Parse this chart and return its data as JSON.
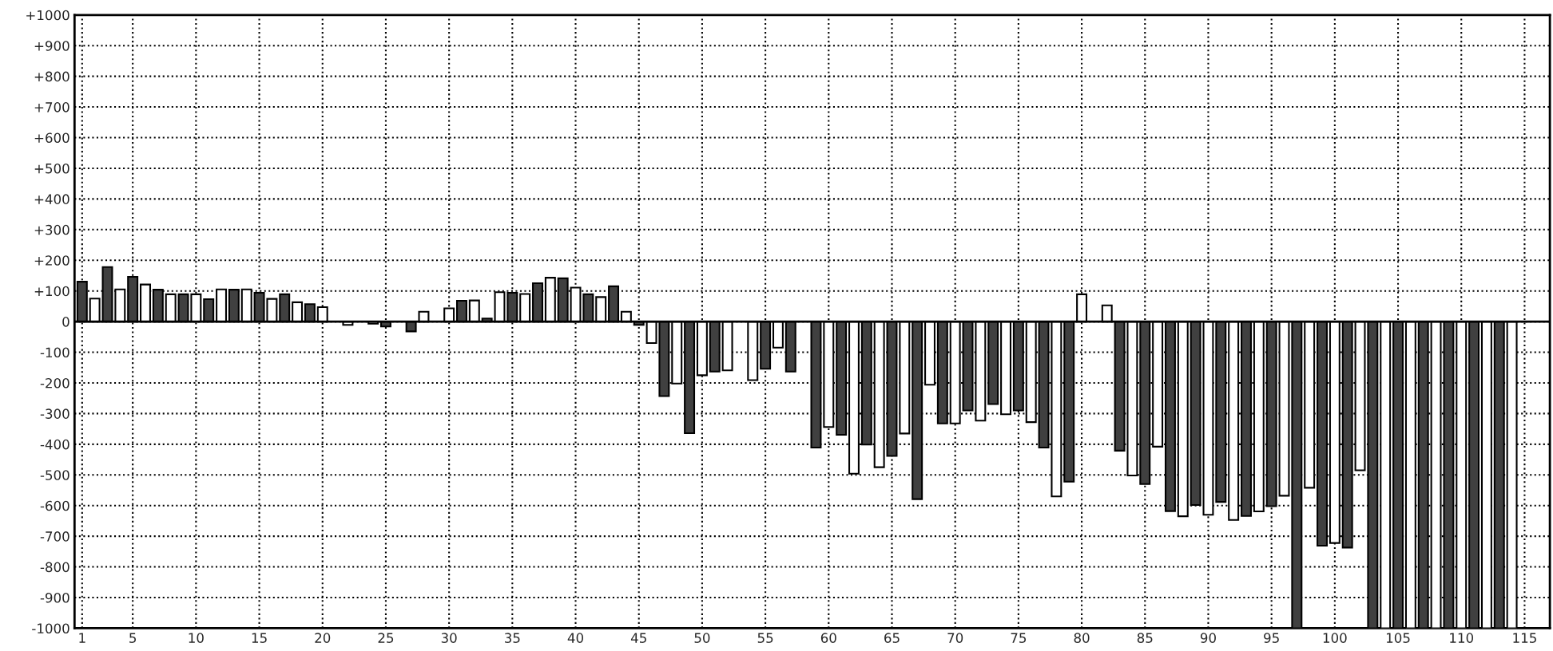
{
  "chart_data": {
    "type": "bar",
    "x": [
      1,
      2,
      3,
      4,
      5,
      6,
      7,
      8,
      9,
      10,
      11,
      12,
      13,
      14,
      15,
      16,
      17,
      18,
      19,
      20,
      21,
      22,
      23,
      24,
      25,
      26,
      27,
      28,
      29,
      30,
      31,
      32,
      33,
      34,
      35,
      36,
      37,
      38,
      39,
      40,
      41,
      42,
      43,
      44,
      45,
      46,
      47,
      48,
      49,
      50,
      51,
      52,
      53,
      54,
      55,
      56,
      57,
      58,
      59,
      60,
      61,
      62,
      63,
      64,
      65,
      66,
      67,
      68,
      69,
      70,
      71,
      72,
      73,
      74,
      75,
      76,
      77,
      78,
      79,
      80,
      81,
      82,
      83,
      84,
      85,
      86,
      87,
      88,
      89,
      90,
      91,
      92,
      93,
      94,
      95,
      96,
      97,
      98,
      99,
      100,
      101,
      102,
      103,
      104,
      105,
      106,
      107,
      108,
      109,
      110,
      111,
      112,
      113,
      114
    ],
    "values": [
      130,
      75,
      178,
      105,
      146,
      121,
      104,
      89,
      89,
      89,
      73,
      105,
      104,
      105,
      94,
      74,
      89,
      63,
      57,
      47,
      null,
      -11,
      null,
      -7,
      -16,
      null,
      -32,
      32,
      null,
      43,
      68,
      69,
      10,
      96,
      94,
      90,
      125,
      143,
      141,
      111,
      89,
      80,
      115,
      32,
      -11,
      -70,
      -243,
      -202,
      -364,
      -175,
      -163,
      -159,
      null,
      -191,
      -154,
      -85,
      -163,
      null,
      -411,
      -344,
      -369,
      -496,
      -401,
      -475,
      -438,
      -365,
      -579,
      -206,
      -332,
      -332,
      -290,
      -323,
      -269,
      -302,
      -290,
      -328,
      -411,
      -570,
      -522,
      89,
      null,
      53,
      -421,
      -502,
      -530,
      -408,
      -618,
      -635,
      -598,
      -630,
      -588,
      -647,
      -634,
      -619,
      -602,
      -568,
      -1000,
      -542,
      -731,
      -722,
      -737,
      -485,
      -1000,
      -1000,
      -1000,
      -1000,
      -1000,
      -1000,
      -1000,
      -1000,
      -1000,
      -1000,
      -1000,
      -1000
    ],
    "colors": [
      "#404040",
      "#ffffff",
      "#404040",
      "#ffffff",
      "#404040",
      "#ffffff",
      "#404040",
      "#ffffff",
      "#404040",
      "#ffffff",
      "#404040",
      "#ffffff",
      "#404040",
      "#ffffff",
      "#404040",
      "#ffffff",
      "#404040",
      "#ffffff",
      "#404040",
      "#ffffff",
      "#404040",
      "#ffffff",
      "#404040",
      "#ffffff",
      "#404040",
      "#ffffff",
      "#404040",
      "#ffffff",
      "#404040",
      "#ffffff",
      "#404040",
      "#ffffff",
      "#404040",
      "#ffffff",
      "#404040",
      "#ffffff",
      "#404040",
      "#ffffff",
      "#404040",
      "#ffffff",
      "#404040",
      "#ffffff",
      "#404040",
      "#ffffff",
      "#404040",
      "#ffffff",
      "#404040",
      "#ffffff",
      "#404040",
      "#ffffff",
      "#404040",
      "#ffffff",
      "#404040",
      "#ffffff",
      "#404040",
      "#ffffff",
      "#404040",
      "#ffffff",
      "#404040",
      "#ffffff",
      "#404040",
      "#ffffff",
      "#404040",
      "#ffffff",
      "#404040",
      "#ffffff",
      "#404040",
      "#ffffff",
      "#404040",
      "#ffffff",
      "#404040",
      "#ffffff",
      "#404040",
      "#ffffff",
      "#404040",
      "#ffffff",
      "#404040",
      "#ffffff",
      "#404040",
      "#ffffff",
      "#404040",
      "#ffffff",
      "#404040",
      "#ffffff",
      "#404040",
      "#ffffff",
      "#404040",
      "#ffffff",
      "#404040",
      "#ffffff",
      "#404040",
      "#ffffff",
      "#404040",
      "#ffffff",
      "#404040",
      "#ffffff",
      "#404040",
      "#ffffff",
      "#404040",
      "#ffffff",
      "#404040",
      "#ffffff",
      "#404040",
      "#ffffff",
      "#404040",
      "#ffffff",
      "#404040",
      "#ffffff",
      "#404040",
      "#ffffff",
      "#404040",
      "#ffffff",
      "#404040",
      "#ffffff"
    ],
    "xlim": [
      0.4,
      117
    ],
    "xticks": [
      1,
      5,
      10,
      15,
      20,
      25,
      30,
      35,
      40,
      45,
      50,
      55,
      60,
      65,
      70,
      75,
      80,
      85,
      90,
      95,
      100,
      105,
      110,
      115
    ],
    "ylim": [
      -1000,
      1000
    ],
    "yticks": [
      {
        "value": 1000,
        "label": "+1000"
      },
      {
        "value": 900,
        "label": "+900"
      },
      {
        "value": 800,
        "label": "+800"
      },
      {
        "value": 700,
        "label": "+700"
      },
      {
        "value": 600,
        "label": "+600"
      },
      {
        "value": 500,
        "label": "+500"
      },
      {
        "value": 400,
        "label": "+400"
      },
      {
        "value": 300,
        "label": "+300"
      },
      {
        "value": 200,
        "label": "+200"
      },
      {
        "value": 100,
        "label": "+100"
      },
      0,
      -100,
      -200,
      -300,
      -400,
      -500,
      -600,
      -700,
      -800,
      -900,
      -1000
    ],
    "ref_lines": [
      {
        "axis": "y",
        "value": 0,
        "color": "#000000",
        "line_style": "solid"
      }
    ],
    "grid": true
  }
}
